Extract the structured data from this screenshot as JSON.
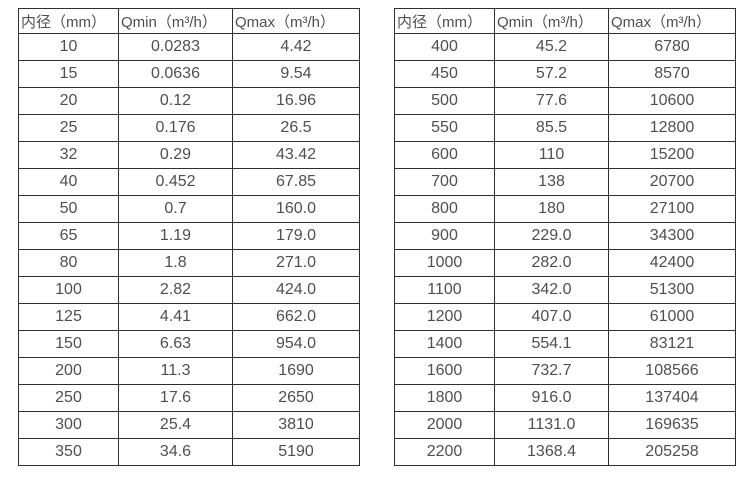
{
  "colors": {
    "border": "#2f2f2f",
    "text": "#4f4f4f",
    "background": "#ffffff"
  },
  "tables": [
    {
      "name": "flow-table-small-diameters",
      "headers": [
        "内径（mm）",
        "Qmin（m³/h）",
        "Qmax（m³/h）"
      ],
      "rows": [
        [
          "10",
          "0.0283",
          "4.42"
        ],
        [
          "15",
          "0.0636",
          "9.54"
        ],
        [
          "20",
          "0.12",
          "16.96"
        ],
        [
          "25",
          "0.176",
          "26.5"
        ],
        [
          "32",
          "0.29",
          "43.42"
        ],
        [
          "40",
          "0.452",
          "67.85"
        ],
        [
          "50",
          "0.7",
          "160.0"
        ],
        [
          "65",
          "1.19",
          "179.0"
        ],
        [
          "80",
          "1.8",
          "271.0"
        ],
        [
          "100",
          "2.82",
          "424.0"
        ],
        [
          "125",
          "4.41",
          "662.0"
        ],
        [
          "150",
          "6.63",
          "954.0"
        ],
        [
          "200",
          "11.3",
          "1690"
        ],
        [
          "250",
          "17.6",
          "2650"
        ],
        [
          "300",
          "25.4",
          "3810"
        ],
        [
          "350",
          "34.6",
          "5190"
        ]
      ]
    },
    {
      "name": "flow-table-large-diameters",
      "headers": [
        "内径（mm）",
        "Qmin（m³/h）",
        "Qmax（m³/h）"
      ],
      "rows": [
        [
          "400",
          "45.2",
          "6780"
        ],
        [
          "450",
          "57.2",
          "8570"
        ],
        [
          "500",
          "77.6",
          "10600"
        ],
        [
          "550",
          "85.5",
          "12800"
        ],
        [
          "600",
          "110",
          "15200"
        ],
        [
          "700",
          "138",
          "20700"
        ],
        [
          "800",
          "180",
          "27100"
        ],
        [
          "900",
          "229.0",
          "34300"
        ],
        [
          "1000",
          "282.0",
          "42400"
        ],
        [
          "1100",
          "342.0",
          "51300"
        ],
        [
          "1200",
          "407.0",
          "61000"
        ],
        [
          "1400",
          "554.1",
          "83121"
        ],
        [
          "1600",
          "732.7",
          "108566"
        ],
        [
          "1800",
          "916.0",
          "137404"
        ],
        [
          "2000",
          "1131.0",
          "169635"
        ],
        [
          "2200",
          "1368.4",
          "205258"
        ]
      ]
    }
  ]
}
